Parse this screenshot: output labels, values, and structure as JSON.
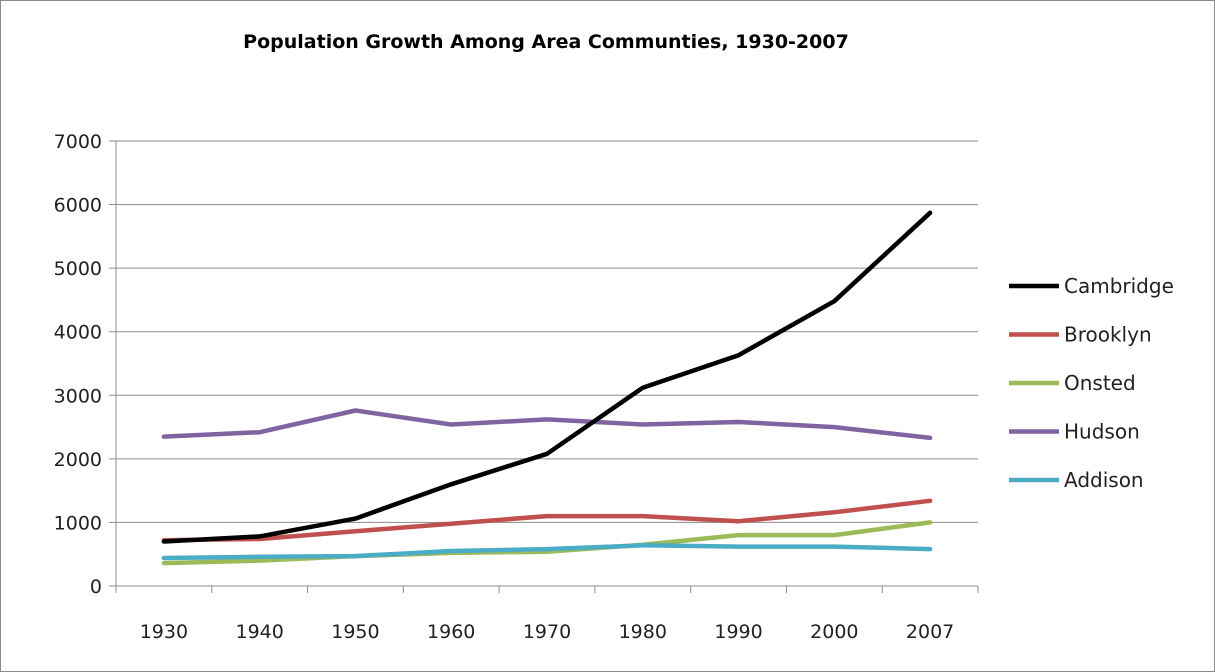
{
  "chart_data": {
    "type": "line",
    "title": "Population Growth Among Area Communties, 1930-2007",
    "xlabel": "",
    "ylabel": "",
    "categories": [
      "1930",
      "1940",
      "1950",
      "1960",
      "1970",
      "1980",
      "1990",
      "2000",
      "2007"
    ],
    "ylim": [
      0,
      7000
    ],
    "yticks": [
      "0",
      "1000",
      "2000",
      "3000",
      "4000",
      "5000",
      "6000",
      "7000"
    ],
    "grid": true,
    "legend_position": "right",
    "series": [
      {
        "name": "Cambridge",
        "color": "#000000",
        "values": [
          700,
          780,
          1060,
          1600,
          2080,
          3120,
          3630,
          4480,
          5870
        ]
      },
      {
        "name": "Brooklyn",
        "color": "#c0504d",
        "values": [
          720,
          740,
          860,
          980,
          1100,
          1100,
          1020,
          1160,
          1340
        ]
      },
      {
        "name": "Onsted",
        "color": "#9bbb59",
        "values": [
          360,
          400,
          470,
          520,
          540,
          650,
          800,
          800,
          1000
        ]
      },
      {
        "name": "Hudson",
        "color": "#8064a2",
        "values": [
          2350,
          2420,
          2760,
          2540,
          2620,
          2540,
          2580,
          2500,
          2330
        ]
      },
      {
        "name": "Addison",
        "color": "#4bacc6",
        "values": [
          440,
          460,
          470,
          550,
          580,
          640,
          620,
          620,
          580
        ]
      }
    ]
  }
}
